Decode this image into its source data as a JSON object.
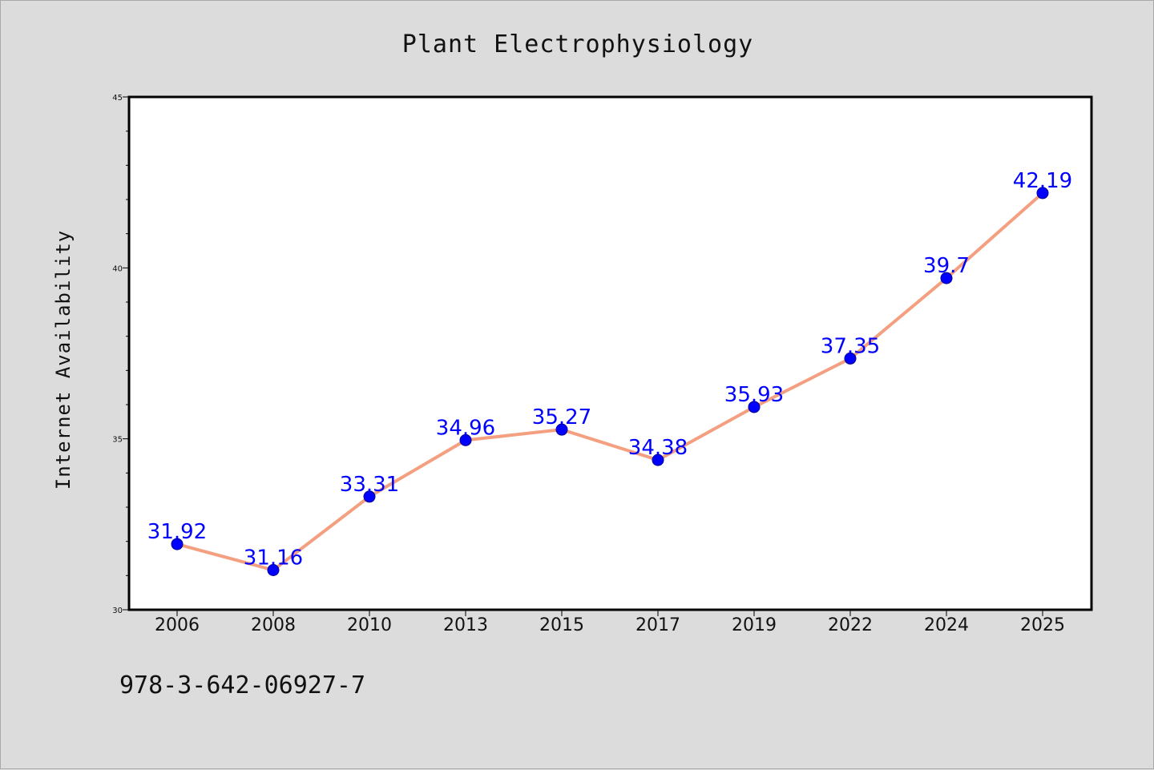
{
  "chart_data": {
    "type": "line",
    "title": "Plant Electrophysiology",
    "xlabel": "",
    "ylabel": "Internet Availability",
    "categories": [
      "2006",
      "2008",
      "2010",
      "2013",
      "2015",
      "2017",
      "2019",
      "2022",
      "2024",
      "2025"
    ],
    "series": [
      {
        "values": [
          31.92,
          31.16,
          33.31,
          34.96,
          35.27,
          34.38,
          35.93,
          37.35,
          39.7,
          42.19
        ]
      }
    ],
    "data_labels": [
      "31.92",
      "31.16",
      "33.31",
      "34.96",
      "35.27",
      "34.38",
      "35.93",
      "37.35",
      "39.7",
      "42.19"
    ],
    "ylim": [
      30,
      45
    ],
    "yticks": [
      "30",
      "35",
      "40",
      "45"
    ],
    "grid": false,
    "line_color": "#f4a080",
    "marker_color": "#0000ff",
    "label_color": "#0000ff",
    "background": "#dcdcdc",
    "plot_background": "#ffffff"
  },
  "footer": {
    "isbn": "978-3-642-06927-7"
  }
}
